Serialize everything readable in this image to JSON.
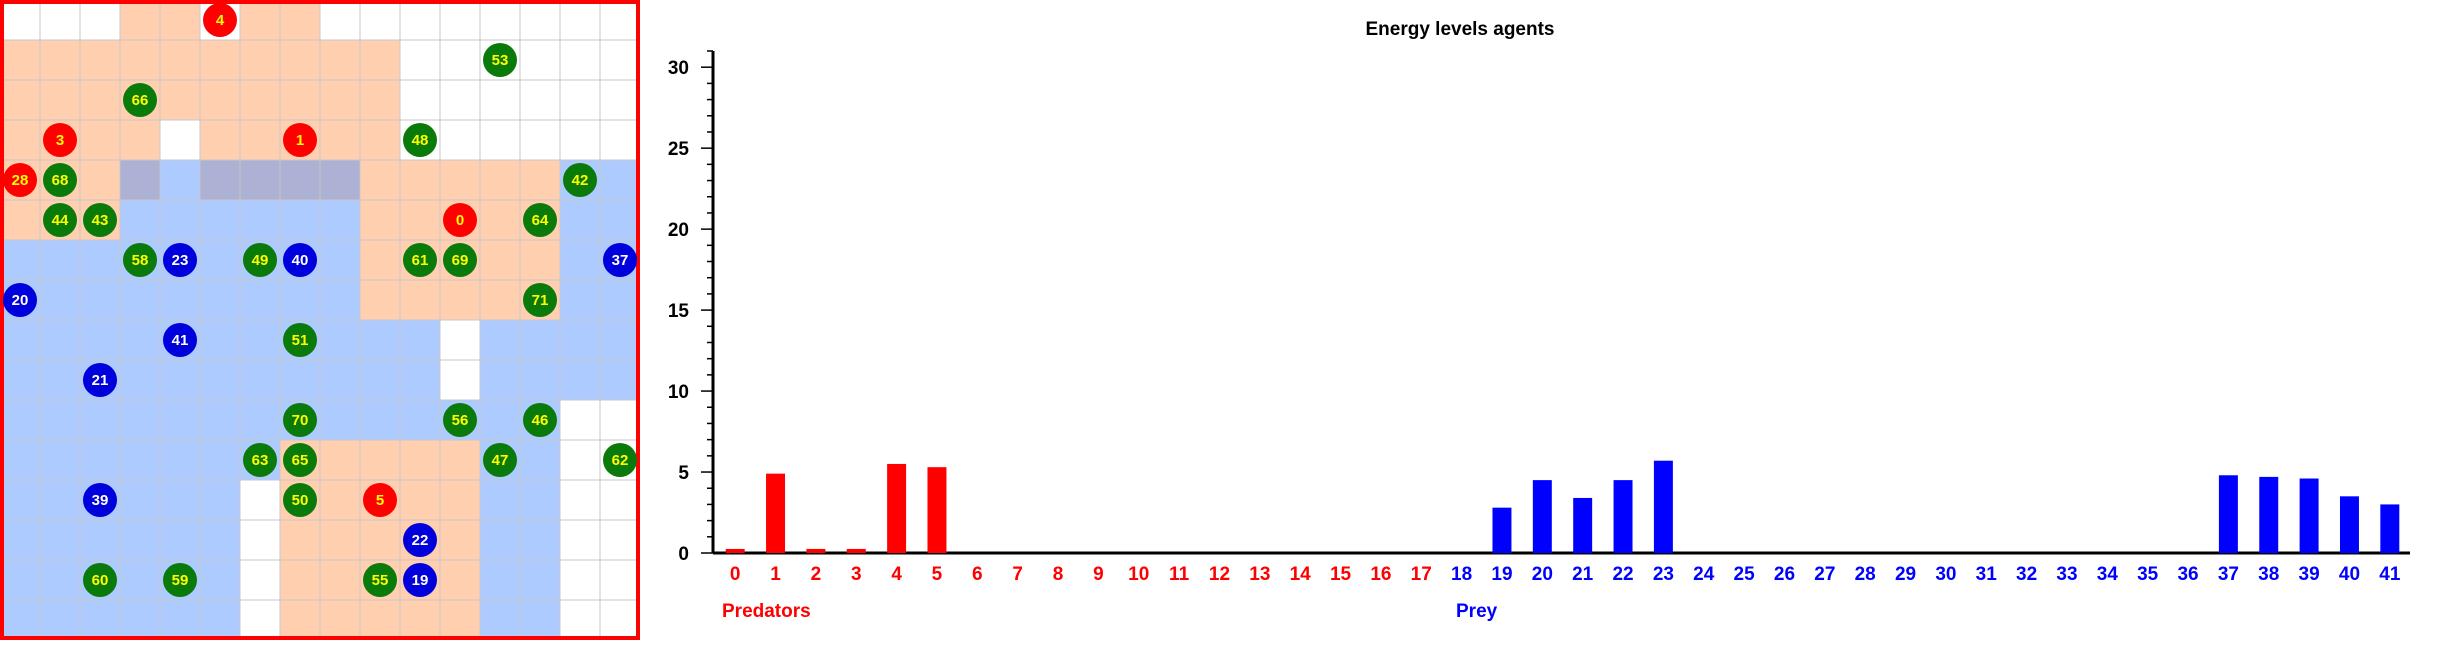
{
  "colors": {
    "predator": "#ff0000",
    "prey_agent": "#0000dd",
    "plant": "#0a7a0a",
    "plant_label": "#ffff00",
    "predator_label": "#ffff00",
    "prey_label": "#ffffff",
    "prey_axis": "#0000ff",
    "predator_zone": "#ffa060",
    "prey_zone": "#4a8cff",
    "border": "#ff0000"
  },
  "grid": {
    "cols": 16,
    "rows": 16,
    "cells": {
      "orange": [
        [
          3,
          0
        ],
        [
          4,
          0
        ],
        [
          6,
          0
        ],
        [
          7,
          0
        ],
        [
          0,
          1
        ],
        [
          1,
          1
        ],
        [
          2,
          1
        ],
        [
          3,
          1
        ],
        [
          4,
          1
        ],
        [
          5,
          1
        ],
        [
          6,
          1
        ],
        [
          7,
          1
        ],
        [
          8,
          1
        ],
        [
          9,
          1
        ],
        [
          0,
          2
        ],
        [
          1,
          2
        ],
        [
          2,
          2
        ],
        [
          3,
          2
        ],
        [
          4,
          2
        ],
        [
          5,
          2
        ],
        [
          6,
          2
        ],
        [
          7,
          2
        ],
        [
          8,
          2
        ],
        [
          9,
          2
        ],
        [
          0,
          3
        ],
        [
          1,
          3
        ],
        [
          2,
          3
        ],
        [
          3,
          3
        ],
        [
          5,
          3
        ],
        [
          6,
          3
        ],
        [
          7,
          3
        ],
        [
          8,
          3
        ],
        [
          9,
          3
        ],
        [
          0,
          4
        ],
        [
          1,
          4
        ],
        [
          2,
          4
        ],
        [
          3,
          4
        ],
        [
          5,
          4
        ],
        [
          6,
          4
        ],
        [
          7,
          4
        ],
        [
          8,
          4
        ],
        [
          9,
          4
        ],
        [
          10,
          4
        ],
        [
          11,
          4
        ],
        [
          12,
          4
        ],
        [
          13,
          4
        ],
        [
          0,
          5
        ],
        [
          1,
          5
        ],
        [
          2,
          5
        ],
        [
          9,
          5
        ],
        [
          10,
          5
        ],
        [
          11,
          5
        ],
        [
          12,
          5
        ],
        [
          13,
          5
        ],
        [
          9,
          6
        ],
        [
          10,
          6
        ],
        [
          11,
          6
        ],
        [
          12,
          6
        ],
        [
          13,
          6
        ],
        [
          9,
          7
        ],
        [
          10,
          7
        ],
        [
          11,
          7
        ],
        [
          12,
          7
        ],
        [
          13,
          7
        ],
        [
          7,
          11
        ],
        [
          8,
          11
        ],
        [
          9,
          11
        ],
        [
          10,
          11
        ],
        [
          11,
          11
        ],
        [
          7,
          12
        ],
        [
          8,
          12
        ],
        [
          9,
          12
        ],
        [
          10,
          12
        ],
        [
          11,
          12
        ],
        [
          7,
          13
        ],
        [
          8,
          13
        ],
        [
          9,
          13
        ],
        [
          10,
          13
        ],
        [
          11,
          13
        ],
        [
          7,
          14
        ],
        [
          8,
          14
        ],
        [
          9,
          14
        ],
        [
          10,
          14
        ],
        [
          11,
          14
        ],
        [
          7,
          15
        ],
        [
          8,
          15
        ],
        [
          9,
          15
        ],
        [
          10,
          15
        ],
        [
          11,
          15
        ]
      ],
      "blue": [
        [
          3,
          4
        ],
        [
          4,
          4
        ],
        [
          5,
          4
        ],
        [
          6,
          4
        ],
        [
          7,
          4
        ],
        [
          8,
          4
        ],
        [
          14,
          4
        ],
        [
          15,
          4
        ],
        [
          3,
          5
        ],
        [
          4,
          5
        ],
        [
          5,
          5
        ],
        [
          6,
          5
        ],
        [
          7,
          5
        ],
        [
          8,
          5
        ],
        [
          14,
          5
        ],
        [
          15,
          5
        ],
        [
          0,
          6
        ],
        [
          1,
          6
        ],
        [
          2,
          6
        ],
        [
          3,
          6
        ],
        [
          4,
          6
        ],
        [
          5,
          6
        ],
        [
          6,
          6
        ],
        [
          7,
          6
        ],
        [
          8,
          6
        ],
        [
          14,
          6
        ],
        [
          15,
          6
        ],
        [
          0,
          7
        ],
        [
          1,
          7
        ],
        [
          2,
          7
        ],
        [
          3,
          7
        ],
        [
          4,
          7
        ],
        [
          5,
          7
        ],
        [
          6,
          7
        ],
        [
          7,
          7
        ],
        [
          8,
          7
        ],
        [
          14,
          7
        ],
        [
          15,
          7
        ],
        [
          0,
          8
        ],
        [
          1,
          8
        ],
        [
          2,
          8
        ],
        [
          3,
          8
        ],
        [
          4,
          8
        ],
        [
          5,
          8
        ],
        [
          6,
          8
        ],
        [
          7,
          8
        ],
        [
          8,
          8
        ],
        [
          9,
          8
        ],
        [
          10,
          8
        ],
        [
          12,
          8
        ],
        [
          13,
          8
        ],
        [
          14,
          8
        ],
        [
          15,
          8
        ],
        [
          0,
          9
        ],
        [
          1,
          9
        ],
        [
          2,
          9
        ],
        [
          3,
          9
        ],
        [
          4,
          9
        ],
        [
          5,
          9
        ],
        [
          6,
          9
        ],
        [
          7,
          9
        ],
        [
          8,
          9
        ],
        [
          9,
          9
        ],
        [
          10,
          9
        ],
        [
          12,
          9
        ],
        [
          13,
          9
        ],
        [
          14,
          9
        ],
        [
          15,
          9
        ],
        [
          0,
          10
        ],
        [
          1,
          10
        ],
        [
          2,
          10
        ],
        [
          3,
          10
        ],
        [
          4,
          10
        ],
        [
          5,
          10
        ],
        [
          6,
          10
        ],
        [
          7,
          10
        ],
        [
          8,
          10
        ],
        [
          9,
          10
        ],
        [
          10,
          10
        ],
        [
          11,
          10
        ],
        [
          12,
          10
        ],
        [
          13,
          10
        ],
        [
          0,
          11
        ],
        [
          1,
          11
        ],
        [
          2,
          11
        ],
        [
          3,
          11
        ],
        [
          4,
          11
        ],
        [
          5,
          11
        ],
        [
          6,
          11
        ],
        [
          12,
          11
        ],
        [
          13,
          11
        ],
        [
          0,
          12
        ],
        [
          1,
          12
        ],
        [
          2,
          12
        ],
        [
          3,
          12
        ],
        [
          4,
          12
        ],
        [
          5,
          12
        ],
        [
          12,
          12
        ],
        [
          13,
          12
        ],
        [
          0,
          13
        ],
        [
          1,
          13
        ],
        [
          2,
          13
        ],
        [
          3,
          13
        ],
        [
          4,
          13
        ],
        [
          5,
          13
        ],
        [
          12,
          13
        ],
        [
          13,
          13
        ],
        [
          0,
          14
        ],
        [
          1,
          14
        ],
        [
          2,
          14
        ],
        [
          3,
          14
        ],
        [
          4,
          14
        ],
        [
          5,
          14
        ],
        [
          12,
          14
        ],
        [
          13,
          14
        ],
        [
          0,
          15
        ],
        [
          1,
          15
        ],
        [
          2,
          15
        ],
        [
          3,
          15
        ],
        [
          4,
          15
        ],
        [
          5,
          15
        ],
        [
          12,
          15
        ],
        [
          13,
          15
        ]
      ]
    },
    "agents": [
      {
        "label": "4",
        "kind": "predator",
        "col": 5,
        "row": 0
      },
      {
        "label": "53",
        "kind": "plant",
        "col": 12,
        "row": 1
      },
      {
        "label": "66",
        "kind": "plant",
        "col": 3,
        "row": 2
      },
      {
        "label": "3",
        "kind": "predator",
        "col": 1,
        "row": 3
      },
      {
        "label": "1",
        "kind": "predator",
        "col": 7,
        "row": 3
      },
      {
        "label": "48",
        "kind": "plant",
        "col": 10,
        "row": 3
      },
      {
        "label": "28",
        "kind": "predator",
        "col": 0,
        "row": 4
      },
      {
        "label": "68",
        "kind": "plant",
        "col": 1,
        "row": 4
      },
      {
        "label": "42",
        "kind": "plant",
        "col": 14,
        "row": 4
      },
      {
        "label": "44",
        "kind": "plant",
        "col": 1,
        "row": 5
      },
      {
        "label": "43",
        "kind": "plant",
        "col": 2,
        "row": 5
      },
      {
        "label": "0",
        "kind": "predator",
        "col": 11,
        "row": 5
      },
      {
        "label": "64",
        "kind": "plant",
        "col": 13,
        "row": 5
      },
      {
        "label": "58",
        "kind": "plant",
        "col": 3,
        "row": 6
      },
      {
        "label": "23",
        "kind": "prey",
        "col": 4,
        "row": 6
      },
      {
        "label": "49",
        "kind": "plant",
        "col": 6,
        "row": 6
      },
      {
        "label": "40",
        "kind": "prey",
        "col": 7,
        "row": 6
      },
      {
        "label": "61",
        "kind": "plant",
        "col": 10,
        "row": 6
      },
      {
        "label": "69",
        "kind": "plant",
        "col": 11,
        "row": 6
      },
      {
        "label": "37",
        "kind": "prey",
        "col": 15,
        "row": 6
      },
      {
        "label": "20",
        "kind": "prey",
        "col": 0,
        "row": 7
      },
      {
        "label": "71",
        "kind": "plant",
        "col": 13,
        "row": 7
      },
      {
        "label": "41",
        "kind": "prey",
        "col": 4,
        "row": 8
      },
      {
        "label": "51",
        "kind": "plant",
        "col": 7,
        "row": 8
      },
      {
        "label": "21",
        "kind": "prey",
        "col": 2,
        "row": 9
      },
      {
        "label": "70",
        "kind": "plant",
        "col": 7,
        "row": 10
      },
      {
        "label": "56",
        "kind": "plant",
        "col": 11,
        "row": 10
      },
      {
        "label": "46",
        "kind": "plant",
        "col": 13,
        "row": 10
      },
      {
        "label": "63",
        "kind": "plant",
        "col": 6,
        "row": 11
      },
      {
        "label": "65",
        "kind": "plant",
        "col": 7,
        "row": 11
      },
      {
        "label": "47",
        "kind": "plant",
        "col": 12,
        "row": 11
      },
      {
        "label": "62",
        "kind": "plant",
        "col": 15,
        "row": 11
      },
      {
        "label": "39",
        "kind": "prey",
        "col": 2,
        "row": 12
      },
      {
        "label": "50",
        "kind": "plant",
        "col": 7,
        "row": 12
      },
      {
        "label": "5",
        "kind": "predator",
        "col": 9,
        "row": 12
      },
      {
        "label": "22",
        "kind": "prey",
        "col": 10,
        "row": 13
      },
      {
        "label": "60",
        "kind": "plant",
        "col": 2,
        "row": 14
      },
      {
        "label": "59",
        "kind": "plant",
        "col": 4,
        "row": 14
      },
      {
        "label": "55",
        "kind": "plant",
        "col": 9,
        "row": 14
      },
      {
        "label": "19",
        "kind": "prey",
        "col": 10,
        "row": 14
      }
    ]
  },
  "chart_data": {
    "type": "bar",
    "title": "Energy levels agents",
    "xlabel": "",
    "ylabel": "",
    "ylim": [
      0,
      31
    ],
    "yticks": [
      0,
      5,
      10,
      15,
      20,
      25,
      30
    ],
    "grid": false,
    "categories": [
      "0",
      "1",
      "2",
      "3",
      "4",
      "5",
      "6",
      "7",
      "8",
      "9",
      "10",
      "11",
      "12",
      "13",
      "14",
      "15",
      "16",
      "17",
      "18",
      "19",
      "20",
      "21",
      "22",
      "23",
      "24",
      "25",
      "26",
      "27",
      "28",
      "29",
      "30",
      "31",
      "32",
      "33",
      "34",
      "35",
      "36",
      "37",
      "38",
      "39",
      "40",
      "41"
    ],
    "values": [
      0.25,
      4.9,
      0.25,
      0.25,
      5.5,
      5.3,
      0,
      0,
      0,
      0,
      0,
      0,
      0,
      0,
      0,
      0,
      0,
      0,
      0,
      2.8,
      4.5,
      3.4,
      4.5,
      5.7,
      0,
      0,
      0,
      0,
      0,
      0,
      0,
      0,
      0,
      0,
      0,
      0,
      0,
      4.8,
      4.7,
      4.6,
      3.5,
      3.0
    ],
    "groups": [
      {
        "name": "Predators",
        "from": 0,
        "to": 17
      },
      {
        "name": "Prey",
        "from": 18,
        "to": 41
      }
    ]
  }
}
